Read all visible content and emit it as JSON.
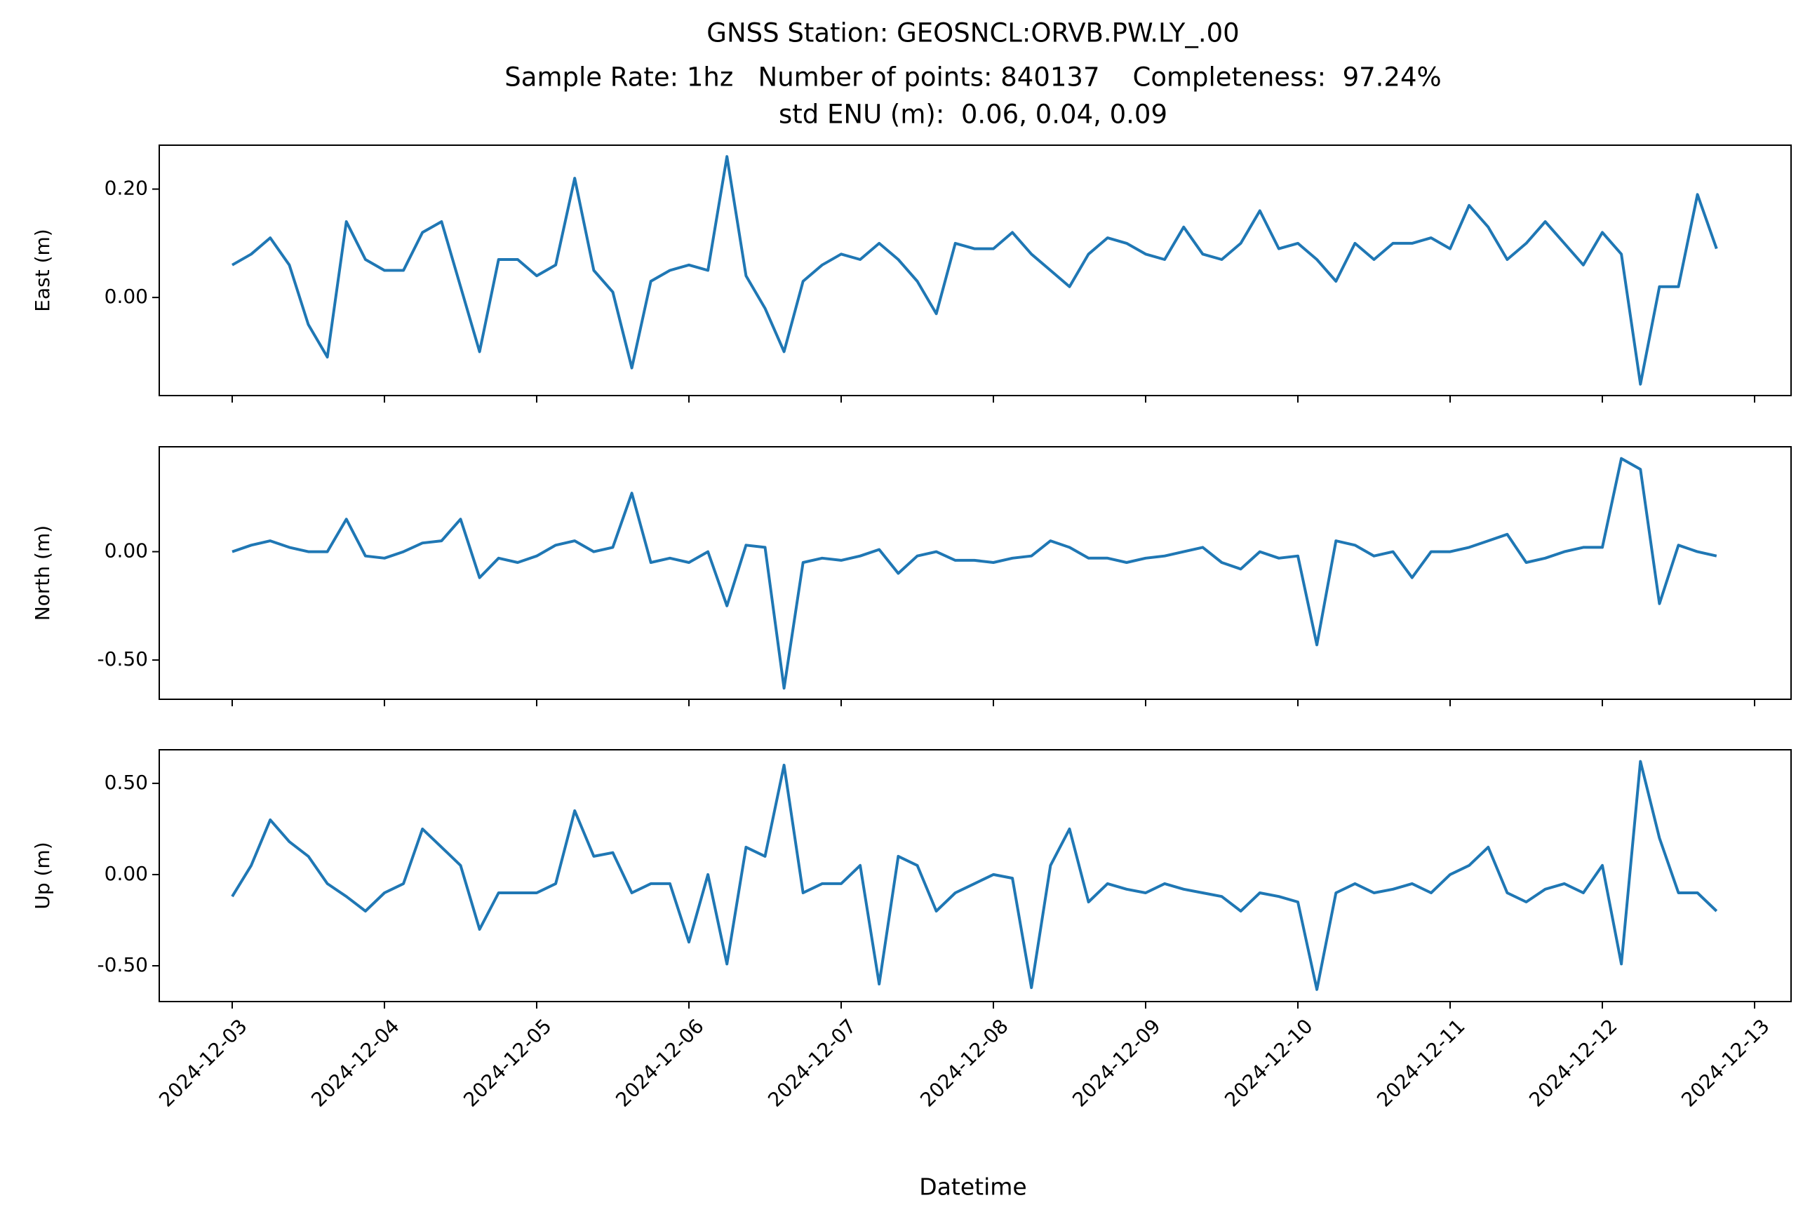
{
  "chart_data": {
    "type": "line",
    "title": [
      "GNSS Station: GEOSNCL:ORVB.PW.LY_.00",
      "Sample Rate: 1hz   Number of points: 840137    Completeness:  97.24%",
      "std ENU (m):  0.06, 0.04, 0.09"
    ],
    "xlabel": "Datetime",
    "xlim": [
      "2024-12-02T12:30",
      "2024-12-13T05:45"
    ],
    "xticks": [
      {
        "value": "2024-12-03T00:00",
        "label": "2024-12-03"
      },
      {
        "value": "2024-12-04T00:00",
        "label": "2024-12-04"
      },
      {
        "value": "2024-12-05T00:00",
        "label": "2024-12-05"
      },
      {
        "value": "2024-12-06T00:00",
        "label": "2024-12-06"
      },
      {
        "value": "2024-12-07T00:00",
        "label": "2024-12-07"
      },
      {
        "value": "2024-12-08T00:00",
        "label": "2024-12-08"
      },
      {
        "value": "2024-12-09T00:00",
        "label": "2024-12-09"
      },
      {
        "value": "2024-12-10T00:00",
        "label": "2024-12-10"
      },
      {
        "value": "2024-12-11T00:00",
        "label": "2024-12-11"
      },
      {
        "value": "2024-12-12T00:00",
        "label": "2024-12-12"
      },
      {
        "value": "2024-12-13T00:00",
        "label": "2024-12-13"
      }
    ],
    "x": [
      "2024-12-03T00:00",
      "2024-12-03T03:00",
      "2024-12-03T06:00",
      "2024-12-03T09:00",
      "2024-12-03T12:00",
      "2024-12-03T15:00",
      "2024-12-03T18:00",
      "2024-12-03T21:00",
      "2024-12-04T00:00",
      "2024-12-04T03:00",
      "2024-12-04T06:00",
      "2024-12-04T09:00",
      "2024-12-04T12:00",
      "2024-12-04T15:00",
      "2024-12-04T18:00",
      "2024-12-04T21:00",
      "2024-12-05T00:00",
      "2024-12-05T03:00",
      "2024-12-05T06:00",
      "2024-12-05T09:00",
      "2024-12-05T12:00",
      "2024-12-05T15:00",
      "2024-12-05T18:00",
      "2024-12-05T21:00",
      "2024-12-06T00:00",
      "2024-12-06T03:00",
      "2024-12-06T06:00",
      "2024-12-06T09:00",
      "2024-12-06T12:00",
      "2024-12-06T15:00",
      "2024-12-06T18:00",
      "2024-12-06T21:00",
      "2024-12-07T00:00",
      "2024-12-07T03:00",
      "2024-12-07T06:00",
      "2024-12-07T09:00",
      "2024-12-07T12:00",
      "2024-12-07T15:00",
      "2024-12-07T18:00",
      "2024-12-07T21:00",
      "2024-12-08T00:00",
      "2024-12-08T03:00",
      "2024-12-08T06:00",
      "2024-12-08T09:00",
      "2024-12-08T12:00",
      "2024-12-08T15:00",
      "2024-12-08T18:00",
      "2024-12-08T21:00",
      "2024-12-09T00:00",
      "2024-12-09T03:00",
      "2024-12-09T06:00",
      "2024-12-09T09:00",
      "2024-12-09T12:00",
      "2024-12-09T15:00",
      "2024-12-09T18:00",
      "2024-12-09T21:00",
      "2024-12-10T00:00",
      "2024-12-10T03:00",
      "2024-12-10T06:00",
      "2024-12-10T09:00",
      "2024-12-10T12:00",
      "2024-12-10T15:00",
      "2024-12-10T18:00",
      "2024-12-10T21:00",
      "2024-12-11T00:00",
      "2024-12-11T03:00",
      "2024-12-11T06:00",
      "2024-12-11T09:00",
      "2024-12-11T12:00",
      "2024-12-11T15:00",
      "2024-12-11T18:00",
      "2024-12-11T21:00",
      "2024-12-12T00:00",
      "2024-12-12T03:00",
      "2024-12-12T06:00",
      "2024-12-12T09:00",
      "2024-12-12T12:00",
      "2024-12-12T15:00",
      "2024-12-12T18:00"
    ],
    "panels": [
      {
        "ylabel": "East (m)",
        "ylim": [
          -0.181,
          0.281
        ],
        "yticks": [
          {
            "value": 0.0,
            "label": "0.00"
          },
          {
            "value": 0.2,
            "label": "0.20"
          }
        ],
        "series": [
          {
            "color": "#1f77b4",
            "values": [
              0.06,
              0.08,
              0.11,
              0.06,
              -0.05,
              -0.11,
              0.14,
              0.07,
              0.05,
              0.05,
              0.12,
              0.14,
              0.02,
              -0.1,
              0.07,
              0.07,
              0.04,
              0.06,
              0.22,
              0.05,
              0.01,
              -0.13,
              0.03,
              0.05,
              0.06,
              0.05,
              0.26,
              0.04,
              -0.02,
              -0.1,
              0.03,
              0.06,
              0.08,
              0.07,
              0.1,
              0.07,
              0.03,
              -0.03,
              0.1,
              0.09,
              0.09,
              0.12,
              0.08,
              0.05,
              0.02,
              0.08,
              0.11,
              0.1,
              0.08,
              0.07,
              0.13,
              0.08,
              0.07,
              0.1,
              0.16,
              0.09,
              0.1,
              0.07,
              0.03,
              0.1,
              0.07,
              0.1,
              0.1,
              0.11,
              0.09,
              0.17,
              0.13,
              0.07,
              0.1,
              0.14,
              0.1,
              0.06,
              0.12,
              0.08,
              -0.16,
              0.02,
              0.02,
              0.19,
              0.09
            ]
          }
        ]
      },
      {
        "ylabel": "North (m)",
        "ylim": [
          -0.681,
          0.484
        ],
        "yticks": [
          {
            "value": -0.5,
            "label": "-0.50"
          },
          {
            "value": 0.0,
            "label": "0.00"
          }
        ],
        "series": [
          {
            "color": "#1f77b4",
            "values": [
              0.0,
              0.03,
              0.05,
              0.02,
              0.0,
              0.0,
              0.15,
              -0.02,
              -0.03,
              0.0,
              0.04,
              0.05,
              0.15,
              -0.12,
              -0.03,
              -0.05,
              -0.02,
              0.03,
              0.05,
              0.0,
              0.02,
              0.27,
              -0.05,
              -0.03,
              -0.05,
              0.0,
              -0.25,
              0.03,
              0.02,
              -0.63,
              -0.05,
              -0.03,
              -0.04,
              -0.02,
              0.01,
              -0.1,
              -0.02,
              0.0,
              -0.04,
              -0.04,
              -0.05,
              -0.03,
              -0.02,
              0.05,
              0.02,
              -0.03,
              -0.03,
              -0.05,
              -0.03,
              -0.02,
              0.0,
              0.02,
              -0.05,
              -0.08,
              0.0,
              -0.03,
              -0.02,
              -0.43,
              0.05,
              0.03,
              -0.02,
              0.0,
              -0.12,
              0.0,
              0.0,
              0.02,
              0.05,
              0.08,
              -0.05,
              -0.03,
              0.0,
              0.02,
              0.02,
              0.43,
              0.38,
              -0.24,
              0.03,
              0.0,
              -0.02
            ]
          }
        ]
      },
      {
        "ylabel": "Up (m)",
        "ylim": [
          -0.696,
          0.684
        ],
        "yticks": [
          {
            "value": -0.5,
            "label": "-0.50"
          },
          {
            "value": 0.0,
            "label": "0.00"
          },
          {
            "value": 0.5,
            "label": "0.50"
          }
        ],
        "series": [
          {
            "color": "#1f77b4",
            "values": [
              -0.12,
              0.05,
              0.3,
              0.18,
              0.1,
              -0.05,
              -0.12,
              -0.2,
              -0.1,
              -0.05,
              0.25,
              0.15,
              0.05,
              -0.3,
              -0.1,
              -0.1,
              -0.1,
              -0.05,
              0.35,
              0.1,
              0.12,
              -0.1,
              -0.05,
              -0.05,
              -0.37,
              0.0,
              -0.49,
              0.15,
              0.1,
              0.6,
              -0.1,
              -0.05,
              -0.05,
              0.05,
              -0.6,
              0.1,
              0.05,
              -0.2,
              -0.1,
              -0.05,
              0.0,
              -0.02,
              -0.62,
              0.05,
              0.25,
              -0.15,
              -0.05,
              -0.08,
              -0.1,
              -0.05,
              -0.08,
              -0.1,
              -0.12,
              -0.2,
              -0.1,
              -0.12,
              -0.15,
              -0.63,
              -0.1,
              -0.05,
              -0.1,
              -0.08,
              -0.05,
              -0.1,
              0.0,
              0.05,
              0.15,
              -0.1,
              -0.15,
              -0.08,
              -0.05,
              -0.1,
              0.05,
              -0.49,
              0.62,
              0.2,
              -0.1,
              -0.1,
              -0.2
            ]
          }
        ]
      }
    ]
  }
}
